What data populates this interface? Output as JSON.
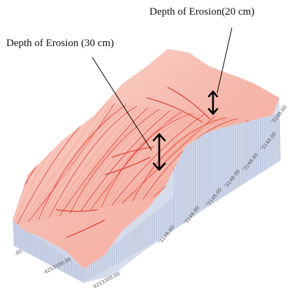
{
  "annotations": {
    "depth_20": "Depth of Erosion(20 cm)",
    "depth_30": "Depth of Erosion (30 cm)"
  },
  "axis_ticks": {
    "front_edge": [
      ".00",
      "4253100.00",
      "4253300.00"
    ],
    "right_edge": [
      "3148.00",
      "3148.00",
      "3148.00",
      "3148.00",
      "3148.00",
      "3148.00",
      "3148.00"
    ]
  },
  "colors": {
    "contour_red": "#e8473a",
    "contour_light": "#f29a8c",
    "side_wall": "#c9d3e6",
    "side_line": "#9fb0d2",
    "arrow": "#000000"
  }
}
